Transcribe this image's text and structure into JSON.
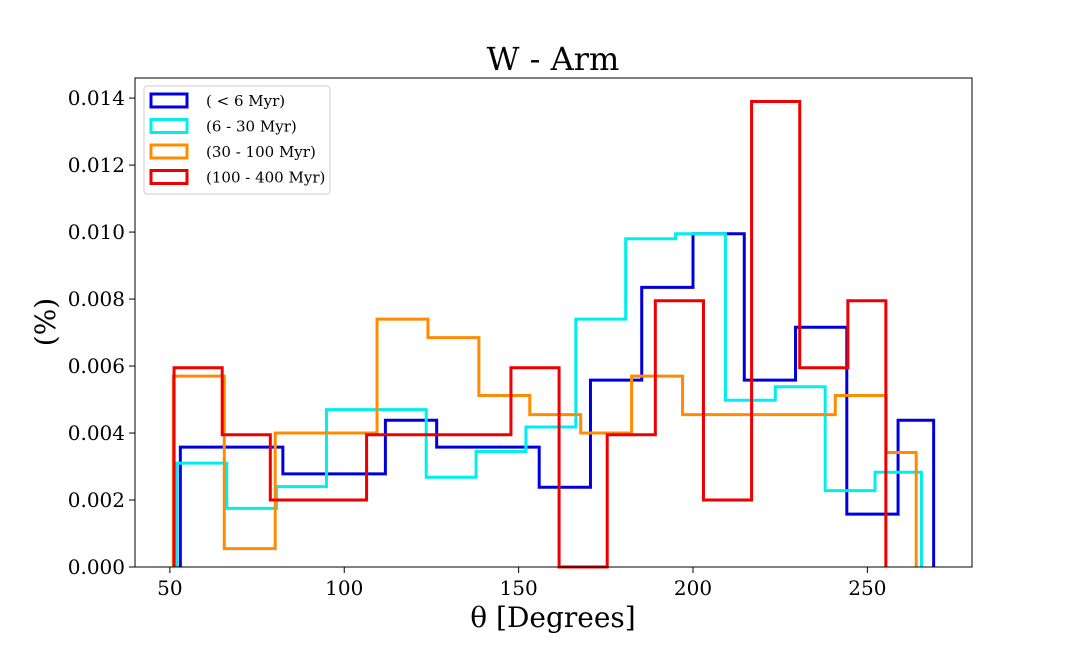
{
  "chart_data": {
    "type": "histogram",
    "title": "W - Arm",
    "xlabel": "θ [Degrees]",
    "ylabel": "(%)",
    "xlim": [
      40,
      280
    ],
    "ylim": [
      0,
      0.0146
    ],
    "xticks": [
      50,
      100,
      150,
      200,
      250
    ],
    "yticks": [
      0.0,
      0.002,
      0.004,
      0.006,
      0.008,
      0.01,
      0.012,
      0.014
    ],
    "xtick_labels": [
      "50",
      "100",
      "150",
      "200",
      "250"
    ],
    "ytick_labels": [
      "0.000",
      "0.002",
      "0.004",
      "0.006",
      "0.008",
      "0.010",
      "0.012",
      "0.014"
    ],
    "legend_position": "upper-left",
    "series": [
      {
        "name": "( < 6 Myr)",
        "color": "#0000dd",
        "edges": [
          53,
          67.7,
          82.4,
          97.1,
          111.8,
          126.5,
          141.2,
          155.9,
          170.6,
          185.3,
          200.0,
          214.7,
          229.4,
          244.1,
          258.8,
          269
        ],
        "values": [
          0.00358,
          0.00358,
          0.00278,
          0.00278,
          0.00438,
          0.00358,
          0.00358,
          0.00238,
          0.00558,
          0.00835,
          0.00995,
          0.00558,
          0.00716,
          0.00158,
          0.00438
        ]
      },
      {
        "name": "(6 - 30 Myr)",
        "color": "#00eeee",
        "edges": [
          52,
          66.3,
          80.6,
          94.9,
          109.2,
          123.5,
          137.8,
          152.1,
          166.4,
          180.7,
          195.0,
          209.3,
          223.6,
          237.9,
          252.2,
          265.5
        ],
        "values": [
          0.0031,
          0.00175,
          0.0024,
          0.0047,
          0.0047,
          0.00268,
          0.00345,
          0.00418,
          0.0074,
          0.0098,
          0.00995,
          0.00498,
          0.00538,
          0.00228,
          0.00283
        ]
      },
      {
        "name": "(30 - 100 Myr)",
        "color": "#ff8c00",
        "edges": [
          51,
          65.6,
          80.2,
          94.8,
          109.4,
          124.0,
          138.6,
          153.2,
          167.8,
          182.4,
          197.0,
          211.6,
          226.2,
          240.8,
          255.4,
          264
        ],
        "values": [
          0.0057,
          0.00055,
          0.004,
          0.004,
          0.0074,
          0.00685,
          0.00512,
          0.00455,
          0.004,
          0.0057,
          0.00455,
          0.00455,
          0.00455,
          0.00512,
          0.00342
        ]
      },
      {
        "name": "(100 - 400 Myr)",
        "color": "#ee0000",
        "edges": [
          51.2,
          65.0,
          78.8,
          92.6,
          106.4,
          120.2,
          134.0,
          147.8,
          161.6,
          175.4,
          189.2,
          203.0,
          216.8,
          230.6,
          244.4,
          255.3
        ],
        "values": [
          0.00595,
          0.00395,
          0.002,
          0.002,
          0.00395,
          0.00395,
          0.00395,
          0.00595,
          0.0,
          0.00395,
          0.00795,
          0.002,
          0.0139,
          0.00595,
          0.00795
        ]
      }
    ]
  }
}
